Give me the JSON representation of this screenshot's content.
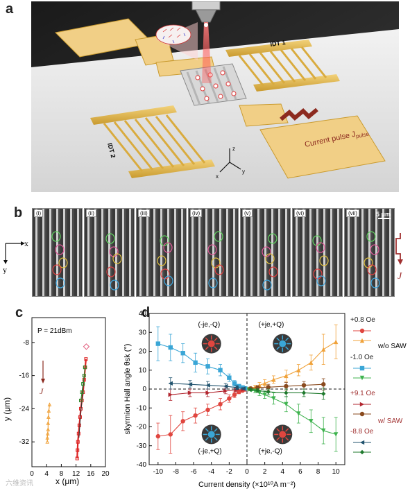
{
  "panels": {
    "a": "a",
    "b": "b",
    "c": "c",
    "d": "d"
  },
  "panel_a": {
    "idt1_label": "IDT 1",
    "idt2_label": "IDT 2",
    "current_pulse_label": "Current pulse J",
    "current_pulse_sub": "pulse",
    "axis_x": "x",
    "axis_y": "y",
    "axis_z": "z"
  },
  "panel_b": {
    "frames": [
      "(i)",
      "(ii)",
      "(iii)",
      "(iv)",
      "(v)",
      "(vi)",
      "(vii)"
    ],
    "scale_bar": "5 μm",
    "axis_x": "x",
    "axis_y": "y",
    "current_label": "J"
  },
  "panel_c": {
    "power_label": "P = 21dBm",
    "current_label": "J",
    "xlabel": "x (μm)",
    "ylabel": "y (μm)",
    "xticks": [
      "0",
      "4",
      "8",
      "12",
      "16",
      "20"
    ],
    "yticks": [
      "-8",
      "-16",
      "-24",
      "-32"
    ],
    "xlim": [
      0,
      20
    ],
    "ylim": [
      -38,
      -2
    ]
  },
  "chart_data": [
    {
      "type": "line",
      "panel": "d",
      "xlabel": "Current density (×10¹⁰A m⁻²)",
      "ylabel": "skyrmion Hall angle θsk (°)",
      "xlim": [
        -11,
        11
      ],
      "ylim": [
        -40,
        40
      ],
      "xticks": [
        "-10",
        "-8",
        "-6",
        "-4",
        "-2",
        "0",
        "2",
        "4",
        "6",
        "8",
        "10"
      ],
      "yticks": [
        "-40",
        "-30",
        "-20",
        "-10",
        "0",
        "10",
        "20",
        "30",
        "40"
      ],
      "quadrant_labels": [
        "(-je,-Q)",
        "(+je,+Q)",
        "(-je,+Q)",
        "(+je,-Q)"
      ],
      "legend_groups": [
        "w/o SAW",
        "w/ SAW"
      ],
      "series": [
        {
          "name": "+0.8 Oe",
          "color": "#e0463f",
          "marker": "circle-left",
          "x": [
            -10,
            -8.6,
            -7.2,
            -5.8,
            -4.4,
            -3.0,
            -2.0,
            -1.4,
            -0.9,
            -0.5,
            -0.2
          ],
          "y": [
            -25,
            -24,
            -17,
            -14,
            -11,
            -8,
            -5,
            -3,
            -1.5,
            -0.8,
            -0.2
          ],
          "err": [
            7,
            10,
            5,
            4,
            3,
            3,
            2,
            1.5,
            1,
            0.6,
            0.3
          ]
        },
        {
          "name": "+0.8 Oe",
          "color": "#f0a23a",
          "marker": "triangle-up",
          "x": [
            0.2,
            0.5,
            0.9,
            1.4,
            2.0,
            3.0,
            4.4,
            5.8,
            7.2,
            8.6,
            10
          ],
          "y": [
            0.2,
            0.5,
            1.0,
            2.0,
            3.0,
            5.0,
            7.0,
            10.0,
            14.0,
            21.0,
            25.0
          ],
          "err": [
            0.3,
            0.5,
            1,
            1.5,
            2,
            2,
            3,
            3,
            4,
            8,
            9
          ]
        },
        {
          "name": "-1.0 Oe",
          "color": "#3aa6d6",
          "marker": "square",
          "x": [
            -10,
            -8.6,
            -7.2,
            -5.8,
            -4.4,
            -3.0,
            -2.0,
            -1.4,
            -0.9,
            -0.5,
            -0.2
          ],
          "y": [
            24,
            22,
            19,
            14,
            12,
            10,
            6,
            3,
            1.5,
            0.8,
            0.3
          ],
          "err": [
            9,
            7,
            5,
            5,
            4,
            3,
            2,
            1.5,
            1,
            0.6,
            0.3
          ]
        },
        {
          "name": "-1.0 Oe",
          "color": "#3fb34f",
          "marker": "triangle-down",
          "x": [
            0.2,
            0.5,
            0.9,
            1.4,
            2.0,
            3.0,
            4.4,
            5.8,
            7.2,
            8.6,
            10
          ],
          "y": [
            -0.2,
            -0.5,
            -1.0,
            -2.0,
            -3.0,
            -5.0,
            -8.0,
            -13.0,
            -17.0,
            -22.0,
            -24.0
          ],
          "err": [
            0.3,
            0.5,
            1,
            1.5,
            2,
            3,
            4,
            5,
            6,
            7,
            9
          ]
        },
        {
          "name": "+9.1 Oe",
          "color": "#b2262f",
          "marker": "triangle-right",
          "x": [
            -8.6,
            -6.4,
            -4.4,
            -2.4,
            -1.2,
            -0.4
          ],
          "y": [
            -3,
            -2,
            -2,
            -1,
            -0.5,
            -0.2
          ],
          "err": [
            3,
            2,
            2,
            1.5,
            1,
            0.5
          ]
        },
        {
          "name": "+9.1 Oe",
          "color": "#8a4a1e",
          "marker": "circle",
          "x": [
            0.4,
            1.2,
            2.4,
            4.4,
            6.4,
            8.6
          ],
          "y": [
            0.3,
            0.8,
            1.0,
            1.5,
            2.0,
            2.5
          ],
          "err": [
            0.5,
            1,
            1.5,
            2,
            2,
            3
          ]
        },
        {
          "name": "-8.8 Oe",
          "color": "#21536e",
          "marker": "triangle-left",
          "x": [
            -8.6,
            -6.4,
            -4.4,
            -2.4,
            -1.2,
            -0.4
          ],
          "y": [
            3,
            2.5,
            2,
            1.5,
            0.8,
            0.3
          ],
          "err": [
            3,
            2,
            2,
            1.5,
            1,
            0.5
          ]
        },
        {
          "name": "-8.8 Oe",
          "color": "#1f7a2e",
          "marker": "diamond",
          "x": [
            0.4,
            1.2,
            2.4,
            4.4,
            6.4,
            8.6
          ],
          "y": [
            -0.3,
            -0.8,
            -1.5,
            -2,
            -2,
            -2.5
          ],
          "err": [
            0.5,
            1,
            1.5,
            2,
            2,
            3
          ]
        }
      ]
    }
  ],
  "watermark": "六维资讯"
}
